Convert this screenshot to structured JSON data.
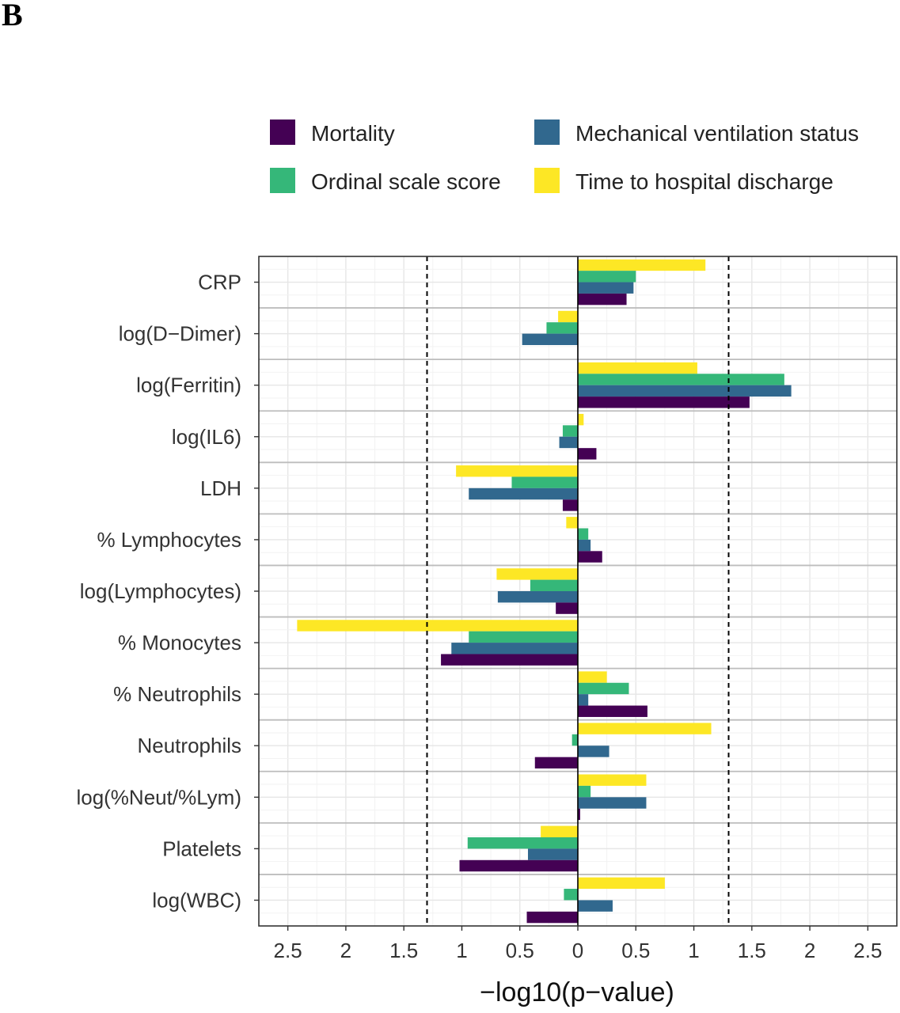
{
  "panel_label": "B",
  "colors": {
    "Mortality": "#440154",
    "Mechanical ventilation status": "#31688e",
    "Ordinal scale score": "#35b779",
    "Time to hospital discharge": "#fde725"
  },
  "chart_data": {
    "type": "bar",
    "orientation": "horizontal",
    "xlabel": "−log10(p−value)",
    "xlim": [
      -2.75,
      2.75
    ],
    "xticks": [
      -2.5,
      -2,
      -1.5,
      -1,
      -0.5,
      0,
      0.5,
      1,
      1.5,
      2,
      2.5
    ],
    "xtick_labels": [
      "2.5",
      "2",
      "1.5",
      "1",
      "0.5",
      "0",
      "0.5",
      "1",
      "1.5",
      "2",
      "2.5"
    ],
    "reference_lines": [
      -1.3,
      1.3
    ],
    "grid": true,
    "legend_position": "top",
    "categories": [
      "CRP",
      "log(D−Dimer)",
      "log(Ferritin)",
      "log(IL6)",
      "LDH",
      "% Lymphocytes",
      "log(Lymphocytes)",
      "% Monocytes",
      "% Neutrophils",
      "Neutrophils",
      "log(%Neut/%Lym)",
      "Platelets",
      "log(WBC)"
    ],
    "series": [
      {
        "name": "Time to hospital discharge",
        "values": [
          1.1,
          -0.17,
          1.03,
          0.05,
          -1.05,
          -0.1,
          -0.7,
          -2.42,
          0.25,
          1.15,
          0.59,
          -0.32,
          0.75
        ]
      },
      {
        "name": "Ordinal scale score",
        "values": [
          0.5,
          -0.27,
          1.78,
          -0.13,
          -0.57,
          0.09,
          -0.41,
          -0.94,
          0.44,
          -0.05,
          0.11,
          -0.95,
          -0.12
        ]
      },
      {
        "name": "Mechanical ventilation status",
        "values": [
          0.48,
          -0.48,
          1.84,
          -0.16,
          -0.94,
          0.11,
          -0.69,
          -1.09,
          0.09,
          0.27,
          0.59,
          -0.43,
          0.3
        ]
      },
      {
        "name": "Mortality",
        "values": [
          0.42,
          0.0,
          1.48,
          0.16,
          -0.13,
          0.21,
          -0.19,
          -1.18,
          0.6,
          -0.37,
          0.02,
          -1.02,
          -0.44
        ]
      }
    ]
  }
}
